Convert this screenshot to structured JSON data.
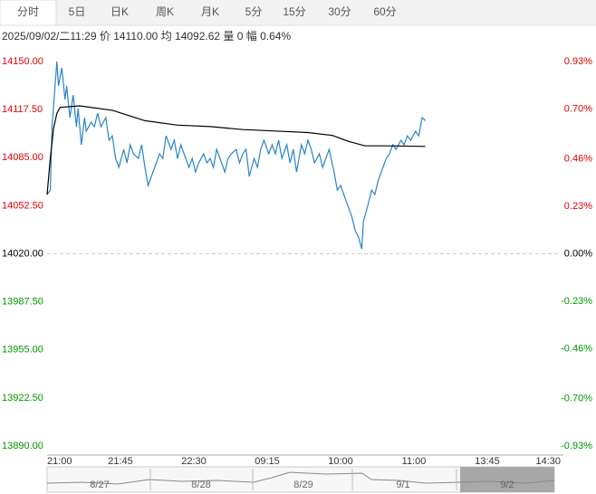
{
  "tabs": [
    "分时",
    "5日",
    "日K",
    "周K",
    "月K",
    "5分",
    "15分",
    "30分",
    "60分"
  ],
  "info": "2025/09/02/二11:29  价 14110.00  均 14092.62  量 0  幅 0.64%",
  "chart_data": {
    "type": "line",
    "series": [
      {
        "color": "#2a84c6",
        "x": [
          0,
          2,
          3,
          6,
          7,
          9,
          11,
          12,
          14,
          16,
          18,
          19,
          21,
          23,
          24,
          27,
          29,
          31,
          33,
          36,
          38,
          40,
          42,
          44,
          47,
          49,
          51,
          53,
          56,
          58,
          60,
          62,
          64,
          67,
          69,
          71,
          73,
          76,
          78,
          80,
          82,
          84,
          87,
          89,
          91,
          93,
          96,
          98,
          100,
          102,
          104,
          107,
          109,
          111,
          113,
          116,
          118,
          120,
          122,
          124,
          127,
          129,
          131,
          133,
          136,
          138,
          140,
          142,
          144,
          147,
          149,
          151,
          153,
          156,
          158,
          160,
          162,
          164,
          167,
          169,
          171,
          173,
          176,
          178,
          180,
          182,
          184,
          187,
          189,
          191,
          193,
          194,
          197,
          199,
          201,
          203,
          206,
          208,
          210,
          212,
          214,
          217,
          219,
          221,
          223,
          226,
          228,
          230,
          232
        ],
        "values": [
          14060.0,
          14063.1,
          14105.9,
          14150,
          14133.5,
          14145.7,
          14124.3,
          14133.5,
          14112.1,
          14127.4,
          14105.9,
          14118.2,
          14093.7,
          14112.1,
          14102.9,
          14109.0,
          14105.9,
          14115.1,
          14105.9,
          14112.1,
          14096.8,
          14099.8,
          14084.5,
          14078.4,
          14090.6,
          14081.5,
          14093.7,
          14087.6,
          14084.5,
          14093.7,
          14078.4,
          14066.2,
          14072.3,
          14081.5,
          14087.6,
          14084.5,
          14099.8,
          14090.6,
          14096.8,
          14084.5,
          14093.7,
          14087.6,
          14078.4,
          14084.5,
          14075.3,
          14081.5,
          14087.6,
          14081.5,
          14084.5,
          14078.4,
          14090.6,
          14081.5,
          14075.3,
          14084.5,
          14087.6,
          14090.6,
          14081.5,
          14087.6,
          14090.6,
          14072.3,
          14084.5,
          14078.4,
          14090.6,
          14096.8,
          14087.6,
          14093.7,
          14087.6,
          14096.8,
          14084.5,
          14093.7,
          14081.5,
          14090.6,
          14075.3,
          14093.7,
          14087.6,
          14096.8,
          14090.6,
          14081.5,
          14087.6,
          14078.4,
          14084.5,
          14090.6,
          14075.3,
          14063.1,
          14066.2,
          14060.0,
          14053.9,
          14044.7,
          14035.6,
          14031.3,
          14023.3,
          14041.7,
          14053.9,
          14063.1,
          14060.0,
          14069.2,
          14078.4,
          14084.5,
          14087.6,
          14093.7,
          14090.6,
          14096.8,
          14093.7,
          14099.8,
          14096.8,
          14102.9,
          14099.8,
          14112.1,
          14110
        ]
      },
      {
        "color": "#000000",
        "x": [
          0,
          2,
          4,
          6,
          8,
          20,
          40,
          60,
          80,
          100,
          120,
          140,
          160,
          175,
          185,
          195,
          210,
          232
        ],
        "values": [
          14060,
          14085,
          14105,
          14115,
          14119,
          14120,
          14117,
          14110,
          14107,
          14106,
          14104,
          14103,
          14102,
          14100,
          14096,
          14093,
          14093,
          14092.62
        ]
      }
    ],
    "xlim": [
      0,
      315
    ],
    "xticks": [
      {
        "value": 0,
        "label": "21:00"
      },
      {
        "value": 45,
        "label": "21:45"
      },
      {
        "value": 90,
        "label": "22:30"
      },
      {
        "value": 135,
        "label": "09:15"
      },
      {
        "value": 180,
        "label": "10:00"
      },
      {
        "value": 225,
        "label": "11:00"
      },
      {
        "value": 270,
        "label": "13:45"
      },
      {
        "value": 315,
        "label": "14:30"
      }
    ],
    "ylim": [
      13890,
      14150
    ],
    "yticks": [
      {
        "value": 14150,
        "label": "14150.00"
      },
      {
        "value": 14117.5,
        "label": "14117.50"
      },
      {
        "value": 14085,
        "label": "14085.00"
      },
      {
        "value": 14052.5,
        "label": "14052.50"
      },
      {
        "value": 14020,
        "label": "14020.00"
      },
      {
        "value": 13987.5,
        "label": "13987.50"
      },
      {
        "value": 13955,
        "label": "13955.00"
      },
      {
        "value": 13922.5,
        "label": "13922.50"
      },
      {
        "value": 13890,
        "label": "13890.00"
      }
    ],
    "y2lim": [
      -0.93,
      0.93
    ],
    "y2ticks": [
      {
        "value": 0.93,
        "label": "0.93%"
      },
      {
        "value": 0.7,
        "label": "0.70%"
      },
      {
        "value": 0.46,
        "label": "0.46%"
      },
      {
        "value": 0.23,
        "label": "0.23%"
      },
      {
        "value": 0,
        "label": "0.00%"
      },
      {
        "value": -0.23,
        "label": "-0.23%"
      },
      {
        "value": -0.46,
        "label": "-0.46%"
      },
      {
        "value": -0.7,
        "label": "-0.70%"
      },
      {
        "value": -0.93,
        "label": "-0.93%"
      }
    ]
  },
  "navigator": {
    "labels": [
      "8/27",
      "8/28",
      "8/29",
      "9/1",
      "9/2"
    ]
  }
}
